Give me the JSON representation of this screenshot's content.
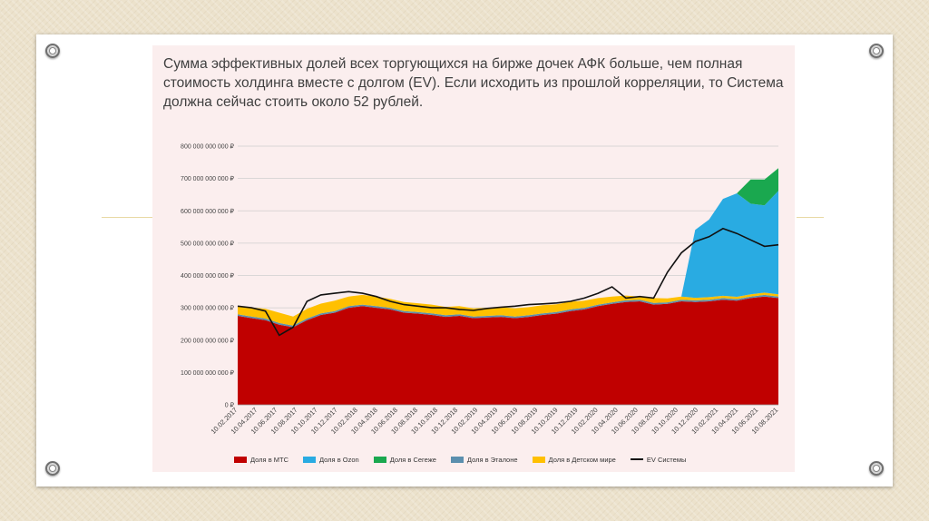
{
  "slide": {
    "title": "Сумма эффективных долей всех торгующихся на бирже дочек АФК больше, чем полная стоимость холдинга вместе с долгом (EV). Если исходить из прошлой корреляции, то Система должна сейчас стоить около 52 рублей."
  },
  "colors": {
    "mts": "#c00000",
    "ozon": "#29abe2",
    "segezha": "#1aa84f",
    "etalon": "#5b8fae",
    "detsky_mir": "#ffc000",
    "ev": "#111111"
  },
  "chart_data": {
    "type": "area",
    "stacked": true,
    "title": "",
    "xlabel": "",
    "ylabel": "",
    "ylim": [
      0,
      800000000000
    ],
    "yticks": [
      0,
      100000000000,
      200000000000,
      300000000000,
      400000000000,
      500000000000,
      600000000000,
      700000000000,
      800000000000
    ],
    "ytick_labels": [
      "0 ₽",
      "100 000 000 000 ₽",
      "200 000 000 000 ₽",
      "300 000 000 000 ₽",
      "400 000 000 000 ₽",
      "500 000 000 000 ₽",
      "600 000 000 000 ₽",
      "700 000 000 000 ₽",
      "800 000 000 000 ₽"
    ],
    "xtick_labels": [
      "10.02.2017",
      "10.04.2017",
      "10.06.2017",
      "10.08.2017",
      "10.10.2017",
      "10.12.2017",
      "10.02.2018",
      "10.04.2018",
      "10.06.2018",
      "10.08.2018",
      "10.10.2018",
      "10.12.2018",
      "10.02.2019",
      "10.04.2019",
      "10.06.2019",
      "10.08.2019",
      "10.10.2019",
      "10.12.2019",
      "10.02.2020",
      "10.04.2020",
      "10.06.2020",
      "10.08.2020",
      "10.10.2020",
      "10.12.2020",
      "10.02.2021",
      "10.04.2021",
      "10.06.2021",
      "10.08.2021"
    ],
    "grid": true,
    "legend_position": "bottom",
    "series": [
      {
        "name": "Доля в МТС",
        "values": [
          275,
          268,
          262,
          248,
          240,
          262,
          278,
          285,
          300,
          305,
          300,
          295,
          285,
          282,
          278,
          272,
          275,
          268,
          270,
          272,
          268,
          272,
          278,
          282,
          290,
          295,
          305,
          312,
          318,
          320,
          310,
          312,
          320,
          318,
          320,
          325,
          322,
          330,
          335,
          330
        ]
      },
      {
        "name": "Доля в Ozon",
        "values": [
          0,
          0,
          0,
          0,
          0,
          0,
          0,
          0,
          0,
          0,
          0,
          0,
          0,
          0,
          0,
          0,
          0,
          0,
          0,
          0,
          0,
          0,
          0,
          0,
          0,
          0,
          0,
          0,
          0,
          0,
          0,
          0,
          0,
          210,
          240,
          300,
          320,
          280,
          270,
          320
        ]
      },
      {
        "name": "Доля в Сегеже",
        "values": [
          0,
          0,
          0,
          0,
          0,
          0,
          0,
          0,
          0,
          0,
          0,
          0,
          0,
          0,
          0,
          0,
          0,
          0,
          0,
          0,
          0,
          0,
          0,
          0,
          0,
          0,
          0,
          0,
          0,
          0,
          0,
          0,
          0,
          0,
          0,
          0,
          0,
          75,
          80,
          70
        ]
      },
      {
        "name": "Доля в Эталоне",
        "values": [
          5,
          5,
          5,
          5,
          5,
          5,
          5,
          5,
          5,
          5,
          5,
          5,
          5,
          5,
          5,
          5,
          5,
          5,
          5,
          5,
          5,
          5,
          5,
          5,
          5,
          5,
          5,
          5,
          5,
          5,
          5,
          5,
          5,
          5,
          5,
          5,
          5,
          5,
          5,
          5
        ]
      },
      {
        "name": "Доля в Детском мире",
        "values": [
          25,
          28,
          30,
          32,
          28,
          30,
          30,
          32,
          30,
          30,
          30,
          28,
          28,
          27,
          27,
          26,
          25,
          25,
          25,
          25,
          25,
          25,
          25,
          24,
          24,
          22,
          20,
          18,
          15,
          10,
          15,
          12,
          10,
          8,
          8,
          7,
          7,
          7,
          7,
          7
        ]
      },
      {
        "name": "EV Системы",
        "values": [
          305,
          300,
          290,
          215,
          240,
          320,
          340,
          345,
          350,
          345,
          335,
          320,
          310,
          305,
          300,
          300,
          295,
          292,
          298,
          302,
          305,
          310,
          312,
          315,
          320,
          330,
          345,
          365,
          330,
          335,
          330,
          410,
          470,
          505,
          520,
          545,
          530,
          510,
          490,
          495
        ]
      }
    ],
    "value_unit_scale": 1000000000
  }
}
